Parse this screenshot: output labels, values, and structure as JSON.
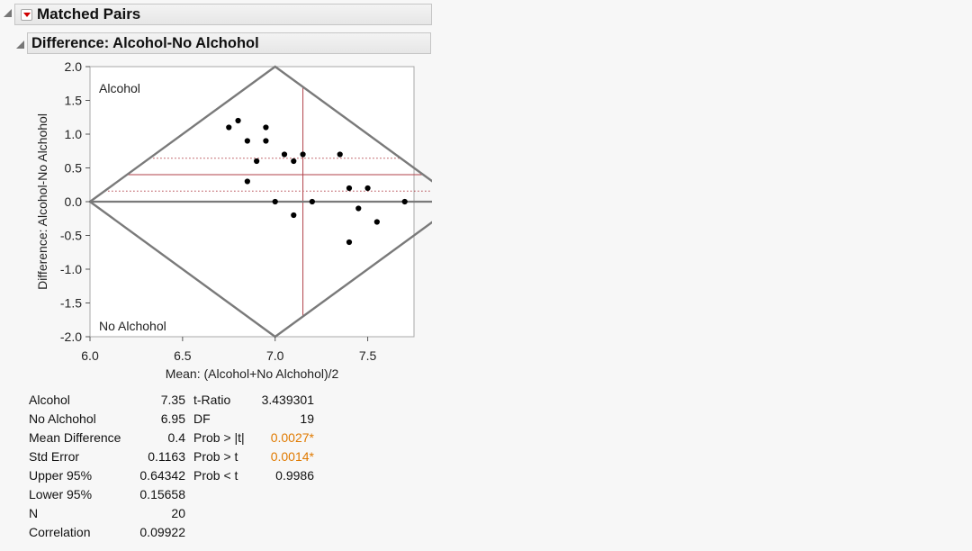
{
  "report": {
    "outline_title": "Matched Pairs",
    "sub_title": "Difference: Alcohol-No Alchohol"
  },
  "chart_data": {
    "type": "scatter",
    "xlabel": "Mean: (Alcohol+No Alchohol)/2",
    "ylabel": "Difference: Alcohol-No Alchohol",
    "xlim": [
      6.0,
      7.75
    ],
    "ylim": [
      -2.0,
      2.0
    ],
    "x_ticks": [
      "6.0",
      "6.5",
      "7.0",
      "7.5"
    ],
    "y_ticks": [
      "2.0",
      "1.5",
      "1.0",
      "0.5",
      "0.0",
      "-0.5",
      "-1.0",
      "-1.5",
      "-2.0"
    ],
    "corner_labels": {
      "top_left": "Alcohol",
      "bottom_left": "No Alchohol"
    },
    "points": [
      {
        "x": 6.75,
        "y": 1.1
      },
      {
        "x": 6.8,
        "y": 1.2
      },
      {
        "x": 6.85,
        "y": 0.9
      },
      {
        "x": 6.85,
        "y": 0.3
      },
      {
        "x": 6.9,
        "y": 0.6
      },
      {
        "x": 6.95,
        "y": 1.1
      },
      {
        "x": 6.95,
        "y": 0.9
      },
      {
        "x": 7.0,
        "y": 0.0
      },
      {
        "x": 7.05,
        "y": 0.7
      },
      {
        "x": 7.1,
        "y": 0.6
      },
      {
        "x": 7.1,
        "y": -0.2
      },
      {
        "x": 7.15,
        "y": 0.7
      },
      {
        "x": 7.2,
        "y": 0.0
      },
      {
        "x": 7.35,
        "y": 0.7
      },
      {
        "x": 7.4,
        "y": 0.2
      },
      {
        "x": 7.4,
        "y": -0.6
      },
      {
        "x": 7.45,
        "y": -0.1
      },
      {
        "x": 7.5,
        "y": 0.2
      },
      {
        "x": 7.55,
        "y": -0.3
      },
      {
        "x": 7.7,
        "y": 0.0
      }
    ],
    "mean_difference": 0.4,
    "upper_95": 0.64342,
    "lower_95": 0.15658,
    "grand_mean": 7.15,
    "colors": {
      "diamond": "#7a7a7a",
      "reference": "#b2424a",
      "points": "#000000"
    }
  },
  "stats": {
    "left": [
      {
        "label": "Alcohol",
        "value": "7.35"
      },
      {
        "label": "No Alchohol",
        "value": "6.95"
      },
      {
        "label": "Mean Difference",
        "value": "0.4"
      },
      {
        "label": "Std Error",
        "value": "0.1163"
      },
      {
        "label": "Upper 95%",
        "value": "0.64342"
      },
      {
        "label": "Lower 95%",
        "value": "0.15658"
      },
      {
        "label": "N",
        "value": "20"
      },
      {
        "label": "Correlation",
        "value": "0.09922"
      }
    ],
    "right": [
      {
        "label": "t-Ratio",
        "value": "3.439301",
        "highlight": false
      },
      {
        "label": "DF",
        "value": "19",
        "highlight": false
      },
      {
        "label": "Prob > |t|",
        "value": "0.0027*",
        "highlight": true
      },
      {
        "label": "Prob > t",
        "value": "0.0014*",
        "highlight": true
      },
      {
        "label": "Prob < t",
        "value": "0.9986",
        "highlight": false
      }
    ],
    "highlight_color": "#e07a00"
  }
}
